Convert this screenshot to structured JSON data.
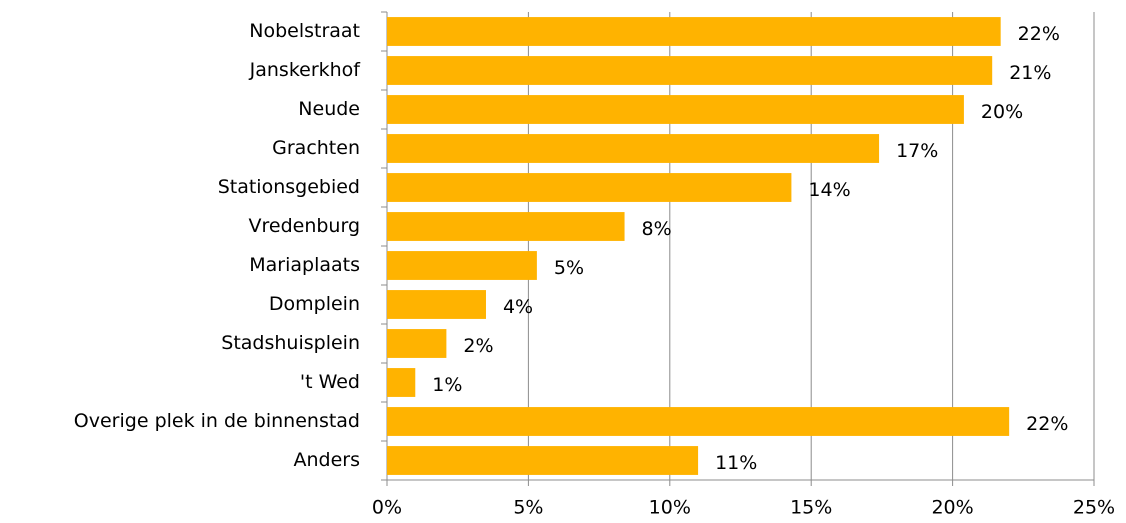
{
  "chart_data": {
    "type": "bar",
    "orientation": "horizontal",
    "categories": [
      "Nobelstraat",
      "Janskerkhof",
      "Neude",
      "Grachten",
      "Stationsgebied",
      "Vredenburg",
      "Mariaplaats",
      "Domplein",
      "Stadshuisplein",
      "'t Wed",
      "Overige plek in de binnenstad",
      "Anders"
    ],
    "values": [
      21.7,
      21.4,
      20.4,
      17.4,
      14.3,
      8.4,
      5.3,
      3.5,
      2.1,
      1.0,
      22.0,
      11.0
    ],
    "value_labels": [
      "22%",
      "21%",
      "20%",
      "17%",
      "14%",
      "8%",
      "5%",
      "4%",
      "2%",
      "1%",
      "22%",
      "11%"
    ],
    "color": "#ffb300",
    "xlim": [
      0,
      25
    ],
    "xticks": [
      {
        "value": 0,
        "label": "0%"
      },
      {
        "value": 5,
        "label": "5%"
      },
      {
        "value": 10,
        "label": "10%"
      },
      {
        "value": 15,
        "label": "15%"
      },
      {
        "value": 20,
        "label": "20%"
      },
      {
        "value": 25,
        "label": "25%"
      }
    ],
    "grid": true
  }
}
